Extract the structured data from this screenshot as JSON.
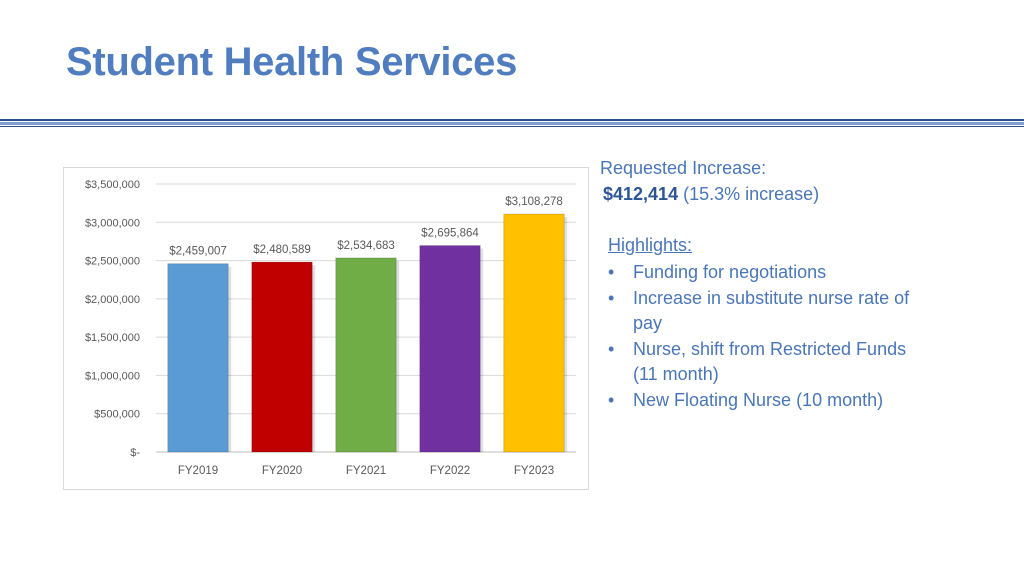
{
  "slide": {
    "title": "Student Health Services"
  },
  "request": {
    "label": "Requested Increase:",
    "amount": "$412,414",
    "percent_text": "(15.3% increase)"
  },
  "highlights": {
    "title": "Highlights:",
    "bullet": "•",
    "items": [
      "Funding for negotiations",
      "Increase in substitute nurse rate of pay",
      "Nurse, shift from Restricted Funds (11 month)",
      "New Floating Nurse (10 month)"
    ]
  },
  "colors": {
    "title": "#4f7dbf",
    "text": "#4a76b8",
    "bars": [
      "#5b9bd5",
      "#c00000",
      "#70ad47",
      "#7030a0",
      "#ffc000"
    ]
  },
  "chart_data": {
    "type": "bar",
    "categories": [
      "FY2019",
      "FY2020",
      "FY2021",
      "FY2022",
      "FY2023"
    ],
    "values": [
      2459007,
      2480589,
      2534683,
      2695864,
      3108278
    ],
    "data_labels": [
      "$2,459,007",
      "$2,480,589",
      "$2,534,683",
      "$2,695,864",
      "$3,108,278"
    ],
    "y_ticks": [
      0,
      500000,
      1000000,
      1500000,
      2000000,
      2500000,
      3000000,
      3500000
    ],
    "y_tick_labels": [
      "$-",
      "$500,000",
      "$1,000,000",
      "$1,500,000",
      "$2,000,000",
      "$2,500,000",
      "$3,000,000",
      "$3,500,000"
    ],
    "ylim": [
      0,
      3500000
    ],
    "grid": true,
    "legend": "none"
  }
}
